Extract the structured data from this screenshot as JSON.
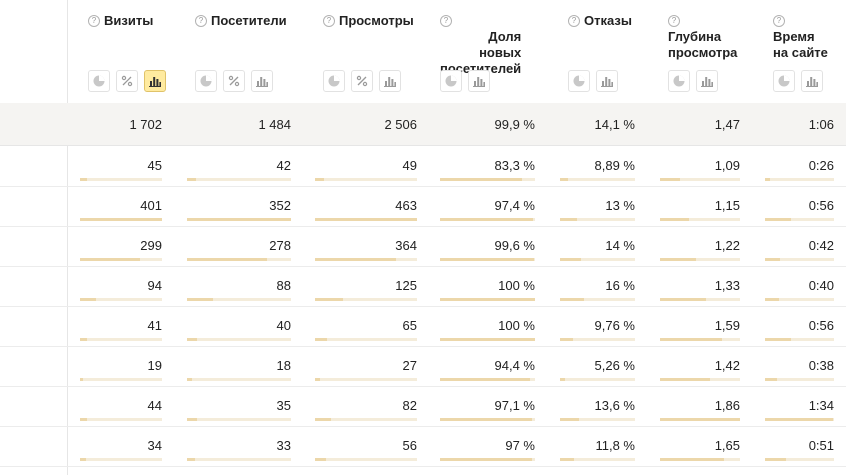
{
  "columns": [
    {
      "key": "visits",
      "title": [
        "Визиты"
      ],
      "help": "?",
      "buttons": [
        "pie",
        "percent",
        "bar"
      ],
      "active": "bar"
    },
    {
      "key": "visitors",
      "title": [
        "Посетители"
      ],
      "help": "?",
      "buttons": [
        "pie",
        "percent",
        "bar"
      ],
      "active": ""
    },
    {
      "key": "views",
      "title": [
        "Просмотры"
      ],
      "help": "?",
      "buttons": [
        "pie",
        "percent",
        "bar"
      ],
      "active": ""
    },
    {
      "key": "new_share",
      "title": [
        "Доля",
        "новых",
        "посетителей"
      ],
      "help": "?",
      "buttons": [
        "pie",
        "bar"
      ],
      "active": ""
    },
    {
      "key": "bounces",
      "title": [
        "Отказы"
      ],
      "help": "?",
      "buttons": [
        "pie",
        "bar"
      ],
      "active": ""
    },
    {
      "key": "depth",
      "title": [
        "Глубина",
        "просмотра"
      ],
      "help": "?",
      "buttons": [
        "pie",
        "bar"
      ],
      "active": ""
    },
    {
      "key": "time",
      "title": [
        "Время",
        "на сайте"
      ],
      "help": "?",
      "buttons": [
        "pie",
        "bar"
      ],
      "active": ""
    }
  ],
  "totals": [
    "1 702",
    "1 484",
    "2 506",
    "99,9 %",
    "14,1 %",
    "1,47",
    "1:06"
  ],
  "rows": [
    {
      "values": [
        "45",
        "42",
        "49",
        "83,3 %",
        "8,89 %",
        "1,09",
        "0:26"
      ],
      "bars": [
        0.09,
        0.09,
        0.09,
        0.86,
        0.1,
        0.25,
        0.07
      ]
    },
    {
      "values": [
        "401",
        "352",
        "463",
        "97,4 %",
        "13 %",
        "1,15",
        "0:56"
      ],
      "bars": [
        1.0,
        1.0,
        1.0,
        0.98,
        0.22,
        0.36,
        0.37
      ]
    },
    {
      "values": [
        "299",
        "278",
        "364",
        "99,6 %",
        "14 %",
        "1,22",
        "0:42"
      ],
      "bars": [
        0.73,
        0.77,
        0.79,
        0.99,
        0.28,
        0.45,
        0.22
      ]
    },
    {
      "values": [
        "94",
        "88",
        "125",
        "100 %",
        "16 %",
        "1,33",
        "0:40"
      ],
      "bars": [
        0.19,
        0.25,
        0.27,
        1.0,
        0.32,
        0.58,
        0.2
      ]
    },
    {
      "values": [
        "41",
        "40",
        "65",
        "100 %",
        "9,76 %",
        "1,59",
        "0:56"
      ],
      "bars": [
        0.08,
        0.1,
        0.12,
        1.0,
        0.17,
        0.77,
        0.37
      ]
    },
    {
      "values": [
        "19",
        "18",
        "27",
        "94,4 %",
        "5,26 %",
        "1,42",
        "0:38"
      ],
      "bars": [
        0.04,
        0.05,
        0.05,
        0.95,
        0.07,
        0.62,
        0.18
      ]
    },
    {
      "values": [
        "44",
        "35",
        "82",
        "97,1 %",
        "13,6 %",
        "1,86",
        "1:34"
      ],
      "bars": [
        0.09,
        0.1,
        0.16,
        0.97,
        0.25,
        1.0,
        0.98
      ]
    },
    {
      "values": [
        "34",
        "33",
        "56",
        "97 %",
        "11,8 %",
        "1,65",
        "0:51"
      ],
      "bars": [
        0.07,
        0.08,
        0.11,
        0.97,
        0.19,
        0.8,
        0.3
      ]
    }
  ],
  "colors": {
    "active_button": "#ffeba0",
    "bar_fill": "#ecd7aa",
    "bar_track": "#f4ecda",
    "total_row_bg": "#f5f4f2"
  },
  "icons": {
    "help": "question-circle-icon",
    "pie": "pie-chart-icon",
    "percent": "percent-icon",
    "bar": "bar-chart-icon"
  }
}
